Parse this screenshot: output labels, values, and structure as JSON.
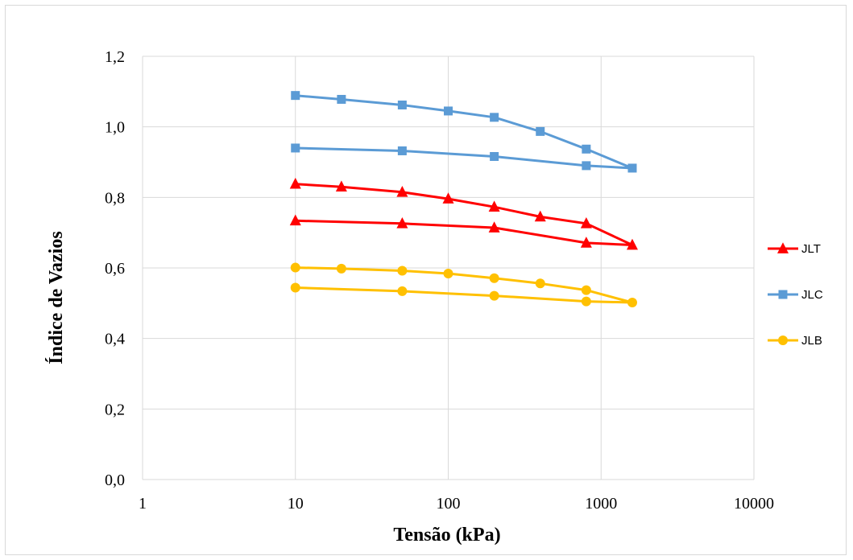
{
  "chart_data": {
    "type": "line",
    "title": "",
    "xlabel": "Tensão (kPa)",
    "ylabel": "Índice de Vazios",
    "x_scale": "log",
    "xlim": [
      1,
      10000
    ],
    "ylim": [
      0,
      1.2
    ],
    "x_ticks": [
      1,
      10,
      100,
      1000,
      10000
    ],
    "x_tick_labels": [
      "1",
      "10",
      "100",
      "1000",
      "10000"
    ],
    "y_ticks": [
      0,
      0.2,
      0.4,
      0.6,
      0.8,
      1.0,
      1.2
    ],
    "y_tick_labels": [
      "0,0",
      "0,2",
      "0,4",
      "0,6",
      "0,8",
      "1,0",
      "1,2"
    ],
    "grid": true,
    "legend_position": "right",
    "series": [
      {
        "name": "JLT",
        "color": "#ff0000",
        "marker": "triangle",
        "points": [
          [
            10,
            0.838
          ],
          [
            20,
            0.83
          ],
          [
            50,
            0.815
          ],
          [
            100,
            0.796
          ],
          [
            200,
            0.773
          ],
          [
            400,
            0.745
          ],
          [
            800,
            0.726
          ],
          [
            1600,
            0.665
          ],
          [
            800,
            0.671
          ],
          [
            200,
            0.714
          ],
          [
            50,
            0.726
          ],
          [
            10,
            0.734
          ]
        ]
      },
      {
        "name": "JLC",
        "color": "#5b9bd5",
        "marker": "square",
        "points": [
          [
            10,
            1.089
          ],
          [
            20,
            1.078
          ],
          [
            50,
            1.062
          ],
          [
            100,
            1.045
          ],
          [
            200,
            1.027
          ],
          [
            400,
            0.987
          ],
          [
            800,
            0.937
          ],
          [
            1600,
            0.883
          ],
          [
            800,
            0.89
          ],
          [
            200,
            0.916
          ],
          [
            50,
            0.932
          ],
          [
            10,
            0.94
          ]
        ]
      },
      {
        "name": "JLB",
        "color": "#ffc000",
        "marker": "circle",
        "points": [
          [
            10,
            0.601
          ],
          [
            20,
            0.598
          ],
          [
            50,
            0.592
          ],
          [
            100,
            0.584
          ],
          [
            200,
            0.571
          ],
          [
            400,
            0.556
          ],
          [
            800,
            0.537
          ],
          [
            1600,
            0.502
          ],
          [
            800,
            0.505
          ],
          [
            200,
            0.521
          ],
          [
            50,
            0.534
          ],
          [
            10,
            0.544
          ]
        ]
      }
    ]
  }
}
